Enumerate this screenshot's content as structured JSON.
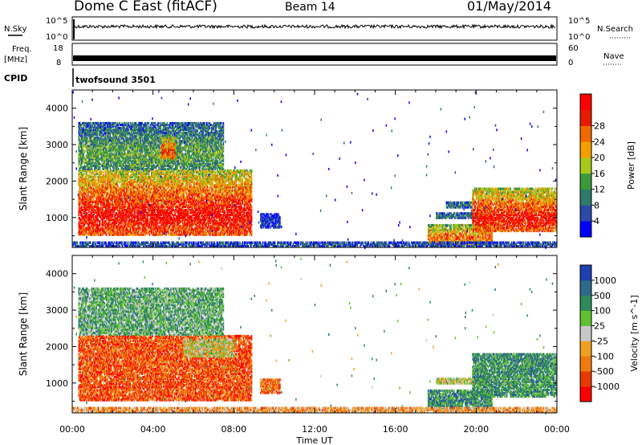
{
  "header": {
    "title": "Dome C East (fitACF)",
    "beam": "Beam 14",
    "date": "01/May/2014"
  },
  "strips": {
    "nsky_label": "N.Sky",
    "nsearch_label": "N.Search",
    "noise_ticks": [
      "10^5",
      "10^0"
    ],
    "freq_label": "Freq.",
    "freq_unit": "[MHz]",
    "freq_ticks": [
      "18",
      "8"
    ],
    "nave_label": "Nave",
    "nave_ticks": [
      "60",
      "0"
    ],
    "cpid_label": "CPID",
    "cpid_value": "twofsound 3501"
  },
  "chart_data": [
    {
      "type": "heatmap",
      "panel": "power",
      "ylabel": "Slant Range [km]",
      "xlabel": "Time UT",
      "xlim": [
        "00:00",
        "24:00"
      ],
      "ylim": [
        180,
        4500
      ],
      "x_ticks": [
        "00:00",
        "04:00",
        "08:00",
        "12:00",
        "16:00",
        "20:00",
        "00:00"
      ],
      "y_ticks": [
        1000,
        2000,
        3000,
        4000
      ],
      "colorbar": {
        "label": "Power [dB]",
        "ticks": [
          4,
          8,
          12,
          16,
          20,
          24,
          28
        ],
        "colors": [
          "#0000ff",
          "#2a4aa8",
          "#2e7a6a",
          "#3c9a3c",
          "#a8c81a",
          "#f2a000",
          "#f06a00",
          "#e81a00",
          "#ff0000"
        ]
      },
      "regions": [
        {
          "t0": 0.3,
          "t1": 8.9,
          "r0": 500,
          "r1": 2300,
          "level": 0.95
        },
        {
          "t0": 0.3,
          "t1": 7.5,
          "r0": 2300,
          "r1": 3600,
          "level": 0.4
        },
        {
          "t0": 4.4,
          "t1": 5.1,
          "r0": 2600,
          "r1": 3200,
          "level": 0.85
        },
        {
          "t0": 9.3,
          "t1": 10.3,
          "r0": 700,
          "r1": 1100,
          "level": 0.15
        },
        {
          "t0": 17.6,
          "t1": 20.8,
          "r0": 250,
          "r1": 800,
          "level": 0.75
        },
        {
          "t0": 18.0,
          "t1": 20.5,
          "r0": 960,
          "r1": 1120,
          "level": 0.3
        },
        {
          "t0": 18.5,
          "t1": 19.8,
          "r0": 1250,
          "r1": 1420,
          "level": 0.3
        },
        {
          "t0": 19.8,
          "t1": 24.0,
          "r0": 600,
          "r1": 1800,
          "level": 0.92
        },
        {
          "t0": 0.0,
          "t1": 24.0,
          "r0": 180,
          "r1": 330,
          "level": 0.2
        }
      ]
    },
    {
      "type": "heatmap",
      "panel": "velocity",
      "ylabel": "Slant Range [km]",
      "xlabel": "Time UT",
      "xlim": [
        "00:00",
        "24:00"
      ],
      "ylim": [
        180,
        4500
      ],
      "x_ticks": [
        "00:00",
        "04:00",
        "08:00",
        "12:00",
        "16:00",
        "20:00",
        "00:00"
      ],
      "y_ticks": [
        1000,
        2000,
        3000,
        4000
      ],
      "colorbar": {
        "label": "Velocity [m s^-1]",
        "ticks": [
          1000,
          500,
          100,
          25,
          -25,
          -100,
          -500,
          -1000
        ],
        "colors": [
          "#2040b0",
          "#2e6a8a",
          "#2e8a5a",
          "#60c030",
          "#c8c8c8",
          "#f0a020",
          "#f07a10",
          "#e83a00",
          "#ff0000"
        ]
      },
      "regions": [
        {
          "t0": 0.3,
          "t1": 8.9,
          "r0": 500,
          "r1": 2300,
          "level": -0.6
        },
        {
          "t0": 0.3,
          "t1": 7.5,
          "r0": 2300,
          "r1": 3600,
          "level": 0.3
        },
        {
          "t0": 5.5,
          "t1": 8.0,
          "r0": 1700,
          "r1": 2200,
          "level": 0.0
        },
        {
          "t0": 9.3,
          "t1": 10.3,
          "r0": 700,
          "r1": 1100,
          "level": -0.5
        },
        {
          "t0": 17.6,
          "t1": 20.8,
          "r0": 250,
          "r1": 800,
          "level": 0.5
        },
        {
          "t0": 18.0,
          "t1": 20.5,
          "r0": 960,
          "r1": 1120,
          "level": 0.0
        },
        {
          "t0": 19.8,
          "t1": 24.0,
          "r0": 600,
          "r1": 1800,
          "level": 0.45
        },
        {
          "t0": 0.0,
          "t1": 24.0,
          "r0": 180,
          "r1": 330,
          "level": -0.3
        }
      ]
    }
  ]
}
